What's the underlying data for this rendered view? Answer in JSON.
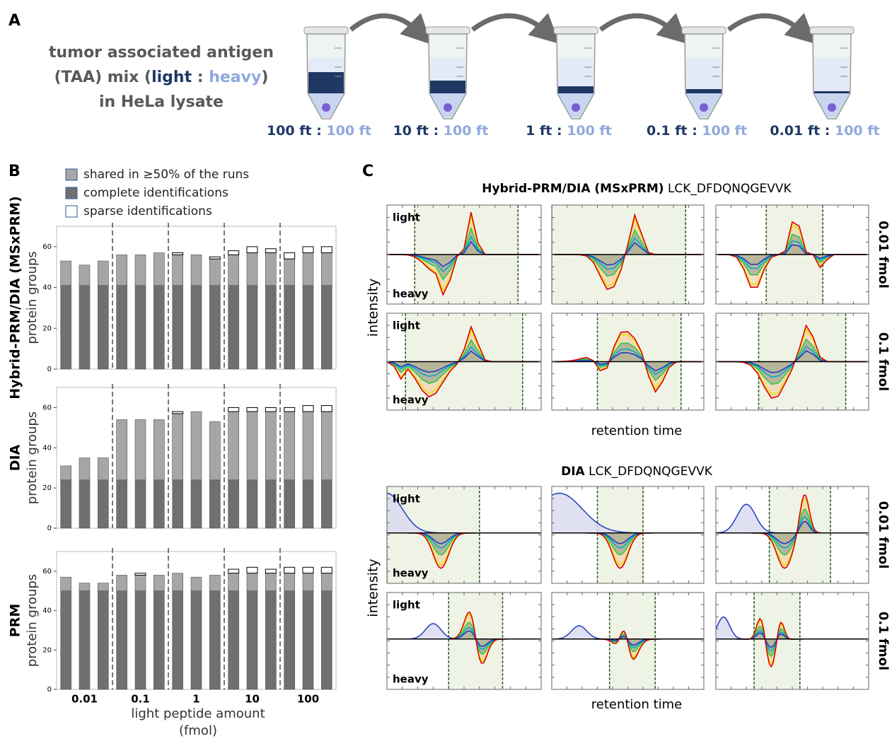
{
  "panel_labels": [
    "A",
    "B",
    "C"
  ],
  "panel_a": {
    "lines": [
      [
        "tumor associated antigen"
      ],
      [
        "(TAA) mix (",
        "light",
        " : ",
        "heavy",
        ")"
      ],
      [
        "in HeLa lysate"
      ]
    ],
    "ratios": [
      [
        "100 ft",
        " : ",
        "100 ft"
      ],
      [
        "10 ft",
        " : ",
        "100 ft"
      ],
      [
        "1 ft",
        " : ",
        "100 ft"
      ],
      [
        "0.1 ft",
        " : ",
        "100 ft"
      ],
      [
        "0.01 ft",
        " : ",
        "100 ft"
      ]
    ]
  },
  "chart_data": [
    {
      "type": "bar",
      "stacked": true,
      "title": "Hybrid-PRM/DIA (MSxPRM)",
      "y_label": "protein groups",
      "ylim": [
        0,
        70
      ],
      "yticks": [
        0,
        20,
        40,
        60
      ],
      "legend": true,
      "categories": [
        null,
        null,
        null,
        null,
        null,
        null,
        null,
        null,
        null,
        null,
        null,
        null,
        null,
        null,
        null
      ],
      "series": [
        {
          "name": "shared in ≥50% of the runs",
          "color": "#a6a6a6",
          "values": [
            12,
            10,
            12,
            15,
            15,
            16,
            15,
            15,
            13,
            15,
            16,
            16,
            13,
            16,
            16
          ]
        },
        {
          "name": "complete identifications",
          "color": "#707070",
          "values": [
            41,
            41,
            41,
            41,
            41,
            41,
            41,
            41,
            41,
            41,
            41,
            41,
            41,
            41,
            41
          ]
        },
        {
          "name": "sparse identifications",
          "color": "#ffffff",
          "values": [
            0,
            0,
            0,
            0,
            0,
            0,
            1,
            0,
            1,
            2,
            3,
            2,
            3,
            3,
            3
          ]
        }
      ]
    },
    {
      "type": "bar",
      "stacked": true,
      "title": "DIA",
      "y_label": "protein groups",
      "ylim": [
        0,
        70
      ],
      "yticks": [
        0,
        20,
        40,
        60
      ],
      "legend": false,
      "categories": [
        null,
        null,
        null,
        null,
        null,
        null,
        null,
        null,
        null,
        null,
        null,
        null,
        null,
        null,
        null
      ],
      "series": [
        {
          "name": "shared in ≥50% of the runs",
          "color": "#a6a6a6",
          "values": [
            7,
            11,
            11,
            30,
            30,
            30,
            33,
            34,
            29,
            34,
            34,
            34,
            34,
            34,
            34
          ]
        },
        {
          "name": "complete identifications",
          "color": "#707070",
          "values": [
            24,
            24,
            24,
            24,
            24,
            24,
            24,
            24,
            24,
            24,
            24,
            24,
            24,
            24,
            24
          ]
        },
        {
          "name": "sparse identifications",
          "color": "#ffffff",
          "values": [
            0,
            0,
            0,
            0,
            0,
            0,
            1,
            0,
            0,
            2,
            2,
            2,
            2,
            3,
            3
          ]
        }
      ]
    },
    {
      "type": "bar",
      "stacked": true,
      "title": "PRM",
      "y_label": "protein groups",
      "x_label": "light peptide amount (fmol)",
      "ylim": [
        0,
        70
      ],
      "yticks": [
        0,
        20,
        40,
        60
      ],
      "legend": false,
      "categories": [
        null,
        "0.01",
        null,
        null,
        "0.1",
        null,
        null,
        "1",
        null,
        null,
        "10",
        null,
        null,
        "100",
        null
      ],
      "series": [
        {
          "name": "shared in ≥50% of the runs",
          "color": "#a6a6a6",
          "values": [
            7,
            4,
            4,
            8,
            8,
            8,
            9,
            7,
            8,
            9,
            9,
            9,
            9,
            9,
            9
          ]
        },
        {
          "name": "complete identifications",
          "color": "#707070",
          "values": [
            50,
            50,
            50,
            50,
            50,
            50,
            50,
            50,
            50,
            50,
            50,
            50,
            50,
            50,
            50
          ]
        },
        {
          "name": "sparse identifications",
          "color": "#ffffff",
          "values": [
            0,
            0,
            0,
            0,
            1,
            0,
            0,
            0,
            0,
            2,
            3,
            2,
            3,
            3,
            3
          ]
        }
      ]
    }
  ],
  "panel_c": {
    "blocks": [
      {
        "method": "Hybrid-PRM/DIA (MSxPRM)",
        "peptide": "LCK_DFDQNQGEVVK"
      },
      {
        "method": "DIA",
        "peptide": "LCK_DFDQNQGEVVK"
      }
    ],
    "row_labels": [
      "0.01 fmol",
      "0.1 fmol"
    ],
    "y_label": "intensity",
    "x_label": "retention time",
    "light_label": "light",
    "heavy_label": "heavy"
  }
}
